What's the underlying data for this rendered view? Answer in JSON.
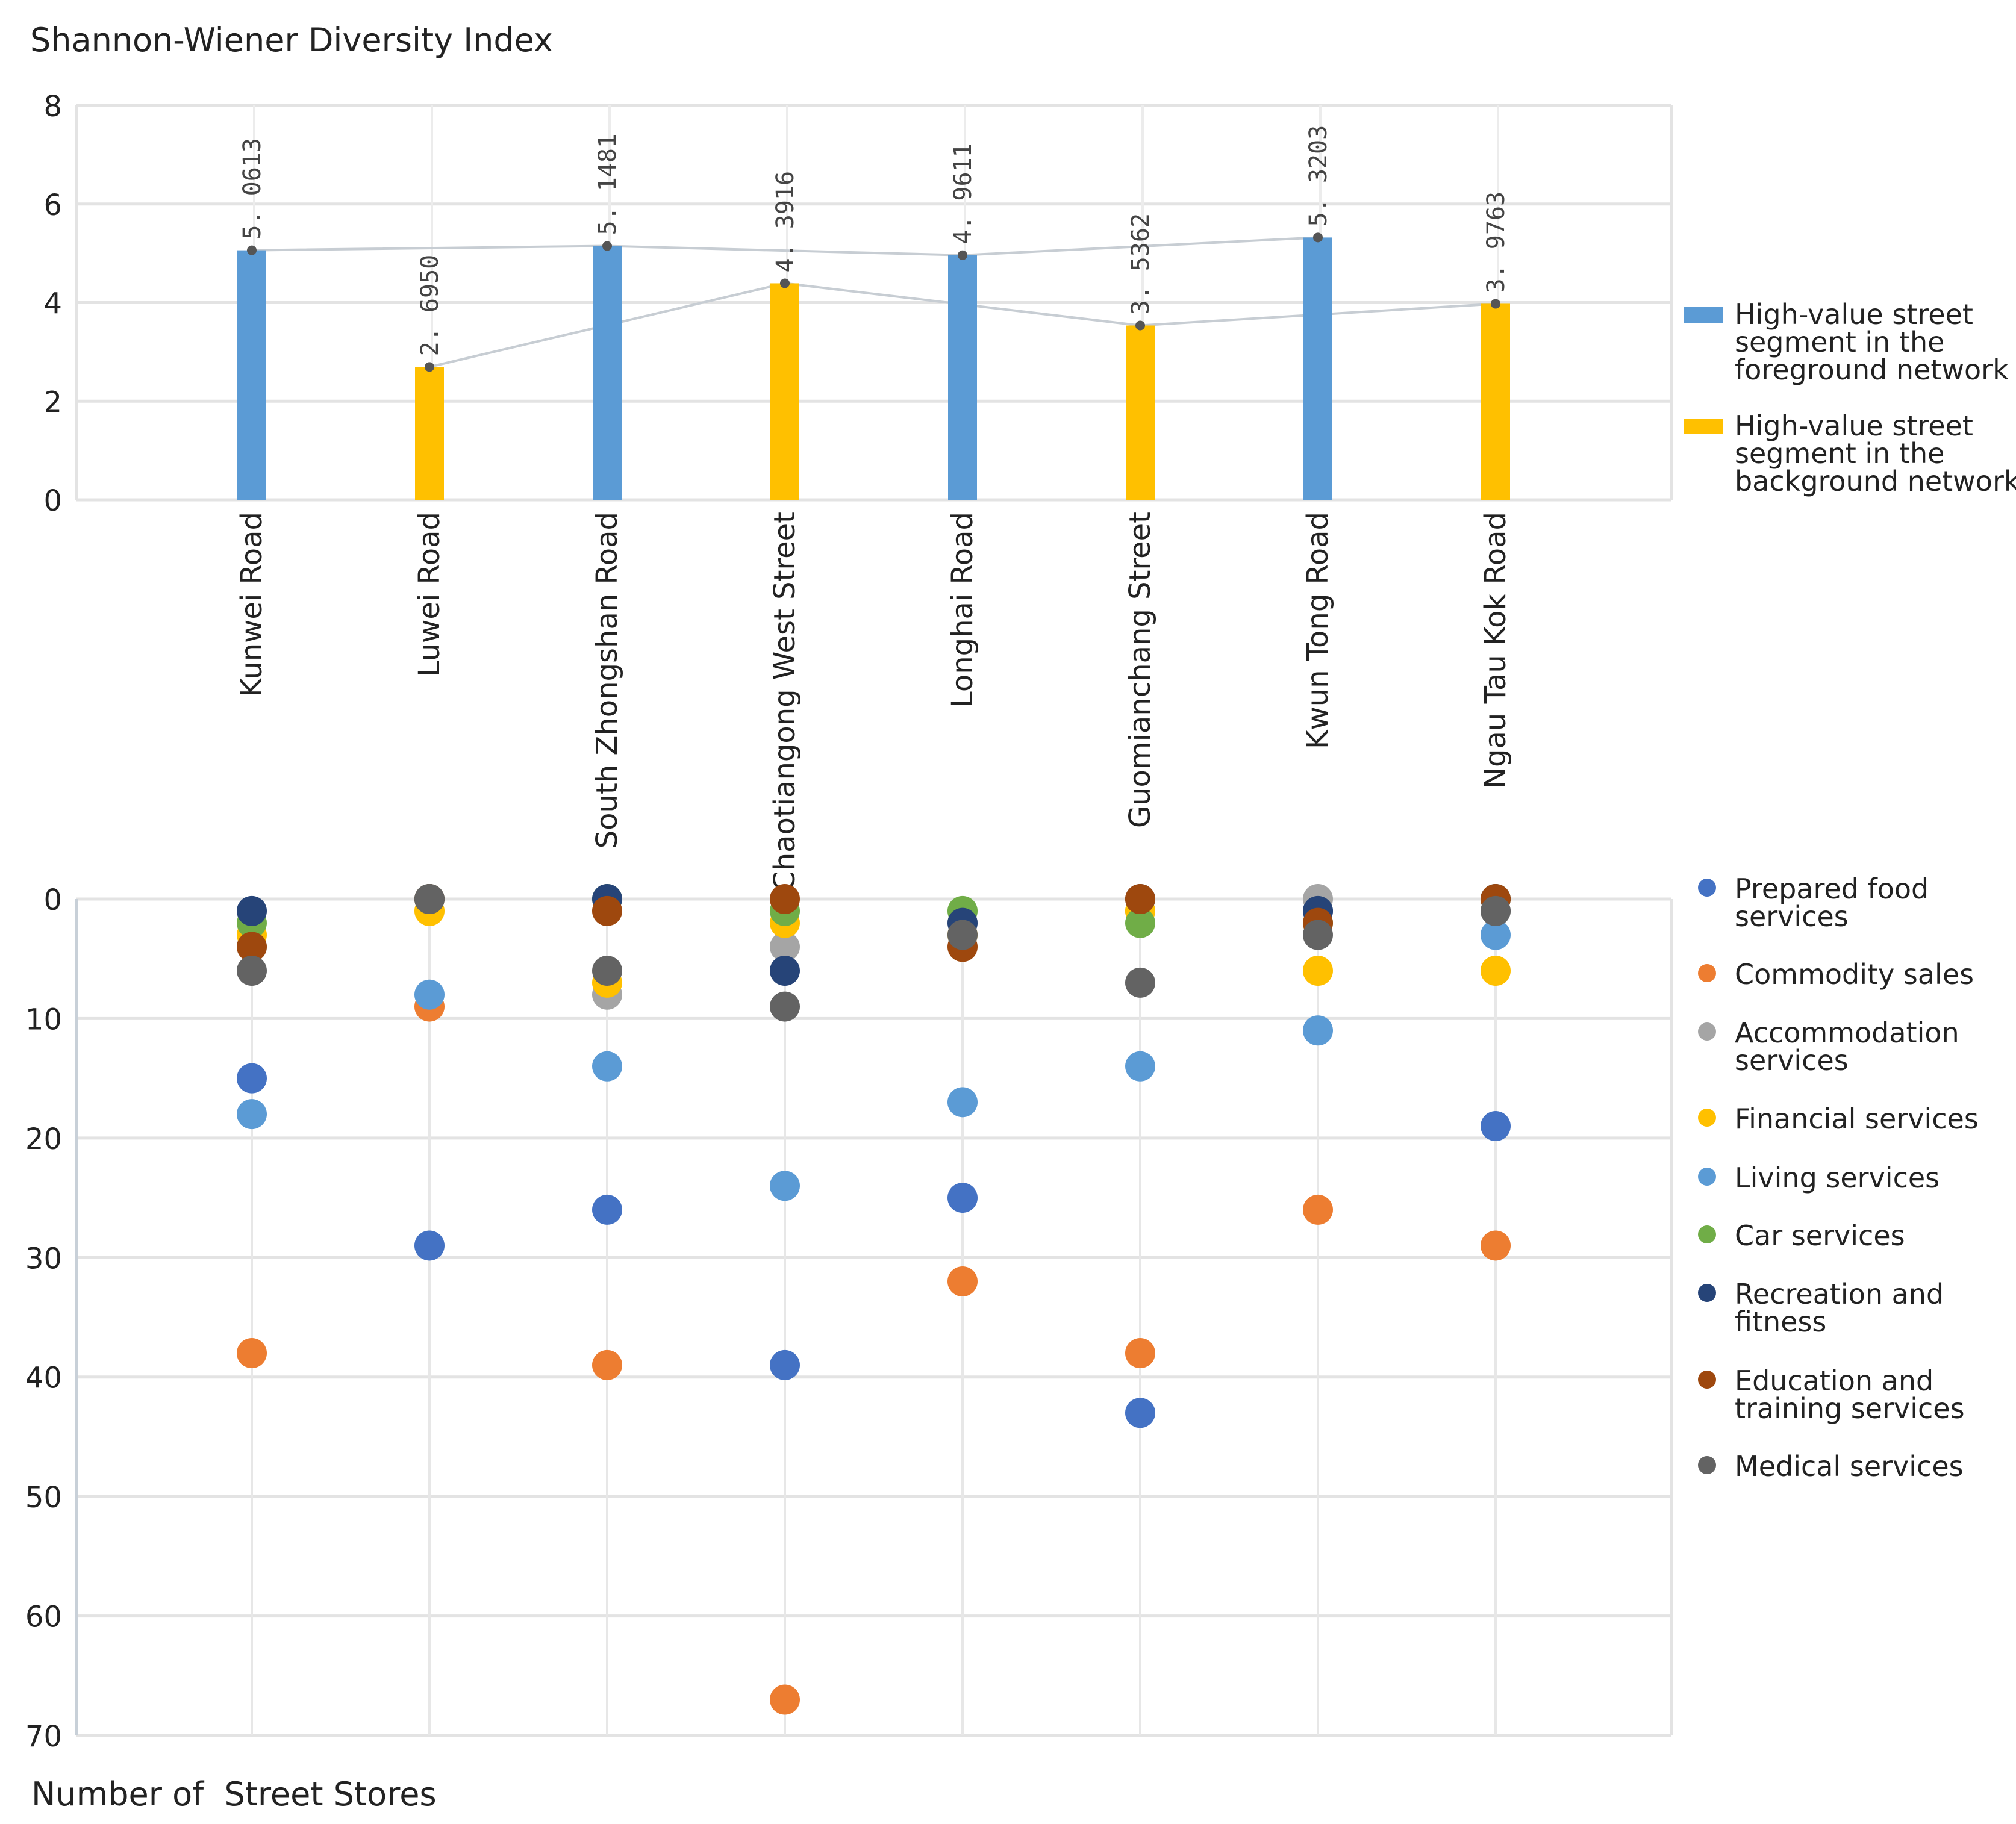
{
  "chart_data": [
    {
      "type": "bar",
      "title": "Shannon-Wiener Diversity Index",
      "ylim": [
        0,
        8
      ],
      "yticks": [
        0,
        2,
        4,
        6,
        8
      ],
      "categories": [
        "Kunwei Road",
        "Luwei Road",
        "South Zhongshan Road",
        "Chaotiangong West Street",
        "Longhai Road",
        "Guomianchang Street",
        "Kwun Tong Road",
        "Ngau Tau Kok Road"
      ],
      "values": [
        5.0613,
        2.695,
        5.1481,
        4.3916,
        4.9611,
        3.5362,
        5.3203,
        3.9763
      ],
      "value_labels": [
        "5. 0613",
        "2. 6950",
        "5. 1481",
        "4. 3916",
        "4. 9611",
        "3. 5362",
        "5. 3203",
        "3. 9763"
      ],
      "group": [
        "foreground",
        "background",
        "foreground",
        "background",
        "foreground",
        "background",
        "foreground",
        "background"
      ],
      "legend": [
        {
          "key": "foreground",
          "label": "High-value street segment in the foreground network",
          "lines": [
            "High-value street",
            "segment in the",
            "foreground network"
          ],
          "color": "#5b9bd5"
        },
        {
          "key": "background",
          "label": "High-value street segment in the background network",
          "lines": [
            "High-value street",
            "segment in the",
            "background network"
          ],
          "color": "#ffc000"
        }
      ],
      "grid": true,
      "legend_position": "right"
    },
    {
      "type": "scatter",
      "ylabel": "Number of  Street Stores",
      "ylim": [
        0,
        70
      ],
      "yticks": [
        0,
        10,
        20,
        30,
        40,
        50,
        60,
        70
      ],
      "y_inverted": true,
      "categories": [
        "Kunwei Road",
        "Luwei Road",
        "South Zhongshan Road",
        "Chaotiangong West Street",
        "Longhai Road",
        "Guomianchang Street",
        "Kwun Tong Road",
        "Ngau Tau Kok Road"
      ],
      "series": [
        {
          "name": "Prepared food services",
          "lines": [
            "Prepared food",
            "services"
          ],
          "color": "#4472c4",
          "values": [
            15,
            29,
            26,
            39,
            25,
            43,
            1,
            19
          ]
        },
        {
          "name": "Commodity sales",
          "lines": [
            "Commodity sales"
          ],
          "color": "#ed7d31",
          "values": [
            38,
            9,
            39,
            67,
            32,
            38,
            26,
            29
          ]
        },
        {
          "name": "Accommodation services",
          "lines": [
            "Accommodation",
            "services"
          ],
          "color": "#a5a5a5",
          "values": [
            4,
            0,
            8,
            4,
            2,
            1,
            0,
            1
          ]
        },
        {
          "name": "Financial services",
          "lines": [
            "Financial services"
          ],
          "color": "#ffc000",
          "values": [
            3,
            1,
            7,
            2,
            3,
            1,
            6,
            6
          ]
        },
        {
          "name": "Living services",
          "lines": [
            "Living services"
          ],
          "color": "#5b9bd5",
          "values": [
            18,
            8,
            14,
            24,
            17,
            14,
            11,
            3
          ]
        },
        {
          "name": "Car services",
          "lines": [
            "Car services"
          ],
          "color": "#70ad47",
          "values": [
            2,
            0,
            0,
            1,
            1,
            2,
            2,
            0
          ]
        },
        {
          "name": "Recreation and fitness",
          "lines": [
            "Recreation and",
            "fitness"
          ],
          "color": "#264478",
          "values": [
            1,
            0,
            0,
            6,
            2,
            0,
            1,
            0
          ]
        },
        {
          "name": "Education and training services",
          "lines": [
            "Education and",
            "training services"
          ],
          "color": "#9e480e",
          "values": [
            4,
            0,
            1,
            0,
            4,
            0,
            2,
            0
          ]
        },
        {
          "name": "Medical services",
          "lines": [
            "Medical services"
          ],
          "color": "#636363",
          "values": [
            6,
            0,
            6,
            9,
            3,
            7,
            3,
            1
          ]
        }
      ],
      "grid": true,
      "legend_position": "right"
    }
  ]
}
